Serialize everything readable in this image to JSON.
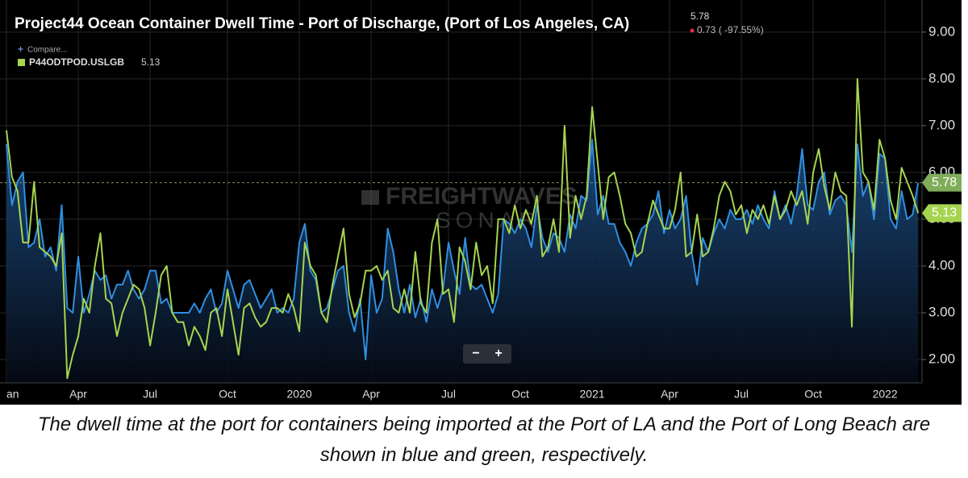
{
  "chart_data": {
    "type": "line",
    "title": "Project44 Ocean Container Dwell Time - Port of Discharge, (Port of Los Angeles, CA)",
    "change": "0.73 ( -97.55%)",
    "compare": "Compare...",
    "watermark": [
      "FREIGHTWAVES",
      "SONAR"
    ],
    "zoom_out": "−",
    "zoom_in": "+",
    "categories": [
      "an",
      null,
      null,
      null,
      null,
      null,
      null,
      null,
      null,
      null,
      null,
      null,
      null,
      "Apr",
      null,
      null,
      null,
      null,
      null,
      null,
      null,
      null,
      null,
      null,
      null,
      null,
      "Jul",
      null,
      null,
      null,
      null,
      null,
      null,
      null,
      null,
      null,
      null,
      null,
      null,
      null,
      "Oct",
      null,
      null,
      null,
      null,
      null,
      null,
      null,
      null,
      null,
      null,
      null,
      null,
      "2020",
      null,
      null,
      null,
      null,
      null,
      null,
      null,
      null,
      null,
      null,
      null,
      null,
      "Apr",
      null,
      null,
      null,
      null,
      null,
      null,
      null,
      null,
      null,
      null,
      null,
      null,
      null,
      "Jul",
      null,
      null,
      null,
      null,
      null,
      null,
      null,
      null,
      null,
      null,
      null,
      null,
      "Oct",
      null,
      null,
      null,
      null,
      null,
      null,
      null,
      null,
      null,
      null,
      null,
      null,
      "2021",
      null,
      null,
      null,
      null,
      null,
      null,
      null,
      null,
      null,
      null,
      null,
      null,
      null,
      "Apr",
      null,
      null,
      null,
      null,
      null,
      null,
      null,
      null,
      null,
      null,
      null,
      null,
      "Jul",
      null,
      null,
      null,
      null,
      null,
      null,
      null,
      null,
      null,
      null,
      null,
      null,
      "Oct",
      null,
      null,
      null,
      null,
      null,
      null,
      null,
      null,
      null,
      null,
      null,
      null,
      "2022",
      null,
      null,
      null,
      null,
      null,
      null
    ],
    "series": [
      {
        "color": "#2f8fe0",
        "values": [
          6.6,
          5.3,
          5.8,
          6.0,
          4.4,
          4.5,
          5.0,
          4.2,
          4.4,
          3.9,
          5.3,
          3.1,
          3.0,
          4.2,
          3.0,
          3.4,
          3.9,
          3.7,
          3.8,
          3.3,
          3.6,
          3.6,
          3.9,
          3.5,
          3.3,
          3.5,
          3.9,
          3.9,
          3.2,
          3.3,
          3.0,
          3.0,
          3.0,
          3.0,
          3.2,
          3.0,
          3.3,
          3.5,
          3.0,
          3.2,
          3.9,
          3.5,
          3.1,
          3.6,
          3.7,
          3.4,
          3.1,
          3.3,
          3.5,
          3.0,
          3.1,
          3.0,
          3.3,
          4.5,
          4.9,
          3.9,
          3.7,
          3.0,
          3.1,
          3.5,
          3.9,
          4.0,
          3.0,
          2.6,
          3.3,
          2.0,
          3.8,
          3.0,
          3.3,
          4.8,
          4.3,
          3.5,
          3.0,
          3.6,
          2.9,
          3.3,
          2.8,
          3.5,
          3.1,
          3.5,
          4.5,
          3.9,
          3.4,
          4.6,
          3.6,
          3.5,
          3.6,
          3.3,
          3.0,
          3.4,
          5.0,
          4.9,
          4.7,
          5.0,
          4.8,
          4.4,
          5.3,
          4.6,
          4.3,
          4.7,
          4.6,
          4.3,
          5.1,
          4.8,
          5.5,
          5.4,
          6.7,
          5.1,
          5.5,
          4.9,
          4.9,
          4.5,
          4.3,
          4.0,
          4.5,
          4.8,
          4.9,
          5.1,
          5.6,
          4.7,
          5.2,
          4.8,
          5.0,
          5.5,
          4.3,
          3.6,
          4.6,
          4.3,
          4.7,
          5.0,
          4.8,
          5.2,
          5.0,
          5.0,
          5.2,
          4.9,
          5.3,
          5.0,
          4.8,
          5.6,
          5.0,
          5.3,
          4.9,
          5.5,
          6.5,
          5.3,
          5.2,
          5.8,
          6.0,
          5.1,
          5.4,
          5.5,
          5.3,
          4.3,
          6.6,
          5.5,
          5.8,
          5.0,
          6.4,
          6.3,
          5.0,
          4.8,
          5.6,
          5.0,
          5.1,
          5.78
        ]
      },
      {
        "name": "P44ODTPOD.USLGB",
        "color": "#a6d44f",
        "values": [
          6.9,
          5.9,
          5.6,
          4.5,
          4.5,
          5.8,
          4.4,
          4.3,
          4.2,
          4.0,
          4.7,
          1.6,
          2.1,
          2.5,
          3.3,
          3.0,
          4.0,
          4.7,
          3.3,
          3.2,
          2.5,
          3.0,
          3.3,
          3.6,
          3.5,
          3.1,
          2.3,
          3.0,
          3.8,
          4.0,
          3.0,
          2.8,
          2.8,
          2.3,
          2.7,
          2.5,
          2.2,
          3.0,
          3.1,
          2.5,
          3.5,
          2.8,
          2.1,
          3.1,
          3.2,
          2.9,
          2.7,
          2.8,
          3.1,
          3.1,
          3.0,
          3.4,
          3.1,
          2.6,
          4.5,
          4.0,
          3.8,
          3.0,
          2.8,
          3.6,
          4.2,
          4.8,
          3.4,
          2.9,
          3.2,
          3.9,
          3.9,
          4.0,
          3.7,
          3.9,
          3.1,
          3.0,
          3.5,
          3.0,
          4.3,
          3.2,
          3.0,
          4.5,
          5.0,
          3.4,
          3.5,
          2.8,
          4.4,
          4.1,
          3.5,
          4.5,
          3.8,
          4.0,
          3.2,
          5.0,
          5.0,
          4.7,
          5.3,
          4.8,
          5.2,
          4.9,
          5.5,
          4.2,
          4.4,
          5.0,
          4.3,
          7.0,
          4.6,
          5.5,
          5.0,
          5.5,
          7.4,
          6.2,
          5.0,
          5.9,
          6.0,
          5.5,
          4.9,
          4.7,
          4.2,
          4.3,
          4.9,
          5.4,
          5.1,
          4.8,
          4.8,
          5.2,
          6.0,
          4.2,
          4.3,
          5.1,
          4.2,
          4.3,
          4.8,
          5.5,
          5.8,
          5.6,
          5.1,
          5.3,
          4.7,
          5.2,
          5.0,
          5.3,
          4.9,
          5.5,
          5.0,
          5.2,
          5.6,
          5.3,
          5.6,
          4.9,
          6.0,
          6.5,
          5.7,
          5.2,
          6.0,
          5.6,
          5.5,
          2.7,
          8.0,
          6.0,
          5.8,
          5.2,
          6.7,
          6.3,
          5.4,
          5.0,
          6.1,
          5.8,
          5.5,
          5.13
        ]
      }
    ],
    "ylim": [
      1.5,
      9.6
    ],
    "yticks": [
      {
        "value": 2,
        "label": "2.00"
      },
      {
        "value": 3,
        "label": "3.00"
      },
      {
        "value": 4,
        "label": "4.00"
      },
      {
        "value": 5,
        "label": "5.00"
      },
      {
        "value": 6,
        "label": "6.00"
      },
      {
        "value": 7,
        "label": "7.00"
      },
      {
        "value": 8,
        "label": "8.00"
      },
      {
        "value": 9,
        "label": "9.00"
      }
    ],
    "grid": true,
    "caption": "The dwell time at the port for containers being imported at the Port of LA and the Port of Long Beach are shown in blue and green, respectively."
  }
}
